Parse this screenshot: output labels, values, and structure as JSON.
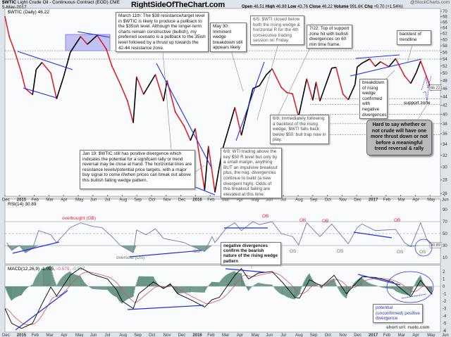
{
  "header": {
    "symbol": "$WTIC",
    "description": "Light Crude Oil - Continuous Contract (EOD)",
    "exchange": "CME",
    "date": "5-May-2017",
    "site": "RightSideOfTheChart.com",
    "credit": "@StockCharts.com",
    "open_label": "Open",
    "open": "46.51",
    "high_label": "High",
    "high": "46.88",
    "low_label": "Low",
    "low": "43.76",
    "close_label": "Close",
    "close": "46.22",
    "volume_label": "Volume",
    "volume": "991.6K",
    "chg_label": "Chg",
    "chg": "+0.70 (+1.54%)"
  },
  "colors": {
    "up": "#000000",
    "down": "#e0202a",
    "trendline": "#1f2ee8",
    "rsi": "#6f78a8",
    "macd": "#000000",
    "signal": "#d0506a",
    "histogram": "#5f8f7f",
    "zone": "#a8a8f0"
  },
  "chart_data": [
    {
      "type": "line",
      "panel": "price",
      "legend": "$WTIC (Daily) 46.22",
      "scale": "log",
      "ylim": [
        25,
        71
      ],
      "yticks": [
        70,
        68,
        66,
        64,
        62,
        60,
        58,
        56,
        54,
        52,
        50,
        48,
        46,
        44,
        42,
        40,
        38,
        36,
        34,
        32,
        30,
        28,
        26
      ],
      "last_value_label": "46.22",
      "grid": "dashed horizontal support/resistance lines",
      "x_ticks": [
        "Dec",
        "2015",
        "Feb",
        "Mar",
        "Apr",
        "May",
        "Jun",
        "Jul",
        "Aug",
        "Sep",
        "Oct",
        "Nov",
        "Dec",
        "2016",
        "Feb",
        "Mar",
        "Apr",
        "May",
        "Jun",
        "Jul",
        "Aug",
        "Sep",
        "Oct",
        "Nov",
        "Dec",
        "2017",
        "Feb",
        "Mar",
        "Apr",
        "May",
        "Jun"
      ],
      "levels": [
        56.5,
        54,
        43.5,
        42.2,
        40,
        38,
        35.8
      ],
      "points": [
        [
          "2014-12-01",
          68
        ],
        [
          "2014-12-10",
          61
        ],
        [
          "2014-12-22",
          56
        ],
        [
          "2015-01-05",
          50
        ],
        [
          "2015-01-13",
          46
        ],
        [
          "2015-01-28",
          44.5
        ],
        [
          "2015-02-05",
          51
        ],
        [
          "2015-02-17",
          53
        ],
        [
          "2015-03-05",
          50
        ],
        [
          "2015-03-17",
          43.5
        ],
        [
          "2015-04-01",
          49
        ],
        [
          "2015-04-15",
          56
        ],
        [
          "2015-05-06",
          61
        ],
        [
          "2015-05-20",
          58.5
        ],
        [
          "2015-06-10",
          61.4
        ],
        [
          "2015-06-29",
          57
        ],
        [
          "2015-07-10",
          52
        ],
        [
          "2015-07-28",
          47
        ],
        [
          "2015-08-12",
          43
        ],
        [
          "2015-08-24",
          38.2
        ],
        [
          "2015-08-31",
          49
        ],
        [
          "2015-09-15",
          44.6
        ],
        [
          "2015-10-09",
          49.6
        ],
        [
          "2015-10-26",
          43
        ],
        [
          "2015-11-03",
          48
        ],
        [
          "2015-11-20",
          40.5
        ],
        [
          "2015-12-08",
          37.5
        ],
        [
          "2015-12-21",
          34.7
        ],
        [
          "2015-12-31",
          37
        ],
        [
          "2016-01-12",
          30.4
        ],
        [
          "2016-01-20",
          26.5
        ],
        [
          "2016-01-28",
          33.6
        ],
        [
          "2016-02-11",
          26.2
        ],
        [
          "2016-02-26",
          32.8
        ],
        [
          "2016-03-22",
          41.5
        ],
        [
          "2016-04-05",
          35.7
        ],
        [
          "2016-04-29",
          46
        ],
        [
          "2016-05-12",
          46.7
        ],
        [
          "2016-05-26",
          49.5
        ],
        [
          "2016-06-08",
          51.2
        ],
        [
          "2016-06-27",
          46.3
        ],
        [
          "2016-07-08",
          45
        ],
        [
          "2016-07-20",
          44.7
        ],
        [
          "2016-08-02",
          39.5
        ],
        [
          "2016-08-19",
          48.5
        ],
        [
          "2016-09-01",
          43.2
        ],
        [
          "2016-09-08",
          47.6
        ],
        [
          "2016-09-16",
          43
        ],
        [
          "2016-10-10",
          51.4
        ],
        [
          "2016-10-19",
          51.6
        ],
        [
          "2016-11-03",
          44.6
        ],
        [
          "2016-11-14",
          43.3
        ],
        [
          "2016-11-28",
          47
        ],
        [
          "2016-12-02",
          51.7
        ],
        [
          "2016-12-12",
          52.8
        ],
        [
          "2016-12-28",
          54
        ],
        [
          "2017-01-09",
          51.9
        ],
        [
          "2017-01-20",
          53.2
        ],
        [
          "2017-02-07",
          51.8
        ],
        [
          "2017-02-21",
          54.1
        ],
        [
          "2017-03-09",
          49.3
        ],
        [
          "2017-03-22",
          47.3
        ],
        [
          "2017-04-03",
          50.2
        ],
        [
          "2017-04-12",
          53.4
        ],
        [
          "2017-04-24",
          49.2
        ],
        [
          "2017-05-04",
          45.5
        ],
        [
          "2017-05-05",
          46.22
        ]
      ]
    },
    {
      "type": "line",
      "panel": "rsi",
      "legend": "RSI(14) 30.89",
      "ylim": [
        0,
        100
      ],
      "yticks": [
        90,
        70,
        50,
        30,
        10
      ],
      "last_value_label": "30.89",
      "levels": [
        70,
        50,
        30
      ],
      "points": [
        [
          "2014-12-05",
          35
        ],
        [
          "2014-12-15",
          22
        ],
        [
          "2014-12-31",
          30
        ],
        [
          "2015-01-13",
          18
        ],
        [
          "2015-01-28",
          25
        ],
        [
          "2015-02-10",
          55
        ],
        [
          "2015-03-05",
          48
        ],
        [
          "2015-03-17",
          35
        ],
        [
          "2015-04-15",
          60
        ],
        [
          "2015-05-06",
          68
        ],
        [
          "2015-06-01",
          62
        ],
        [
          "2015-06-20",
          60
        ],
        [
          "2015-07-10",
          45
        ],
        [
          "2015-07-28",
          30
        ],
        [
          "2015-08-24",
          18
        ],
        [
          "2015-08-31",
          56
        ],
        [
          "2015-09-20",
          48
        ],
        [
          "2015-10-09",
          58
        ],
        [
          "2015-10-26",
          42
        ],
        [
          "2015-11-20",
          38
        ],
        [
          "2015-12-08",
          35
        ],
        [
          "2015-12-21",
          30
        ],
        [
          "2016-01-20",
          20
        ],
        [
          "2016-02-05",
          45
        ],
        [
          "2016-02-11",
          35
        ],
        [
          "2016-03-05",
          60
        ],
        [
          "2016-03-22",
          68
        ],
        [
          "2016-04-05",
          55
        ],
        [
          "2016-04-29",
          70
        ],
        [
          "2016-05-12",
          65
        ],
        [
          "2016-06-08",
          70
        ],
        [
          "2016-06-27",
          50
        ],
        [
          "2016-07-20",
          45
        ],
        [
          "2016-08-02",
          31
        ],
        [
          "2016-08-19",
          68
        ],
        [
          "2016-09-16",
          45
        ],
        [
          "2016-10-10",
          66
        ],
        [
          "2016-11-14",
          33
        ],
        [
          "2016-12-02",
          60
        ],
        [
          "2016-12-12",
          66
        ],
        [
          "2017-01-09",
          55
        ],
        [
          "2017-02-21",
          57
        ],
        [
          "2017-03-09",
          35
        ],
        [
          "2017-03-22",
          28
        ],
        [
          "2017-04-12",
          68
        ],
        [
          "2017-04-24",
          42
        ],
        [
          "2017-05-04",
          29
        ],
        [
          "2017-05-05",
          30.89
        ]
      ]
    },
    {
      "type": "line",
      "panel": "macd",
      "legend_prefix": "MACD(12,26,9)",
      "legend_macd": "-1.095,",
      "legend_signal": "-0.579,",
      "legend_hist": "-0.517",
      "ylim": [
        -6.3,
        2.6
      ],
      "yticks": [
        2,
        1,
        0,
        -1,
        -2,
        -3,
        -4,
        -5,
        -6
      ],
      "points": [
        [
          "2014-12-01",
          -3
        ],
        [
          "2014-12-15",
          -5
        ],
        [
          "2015-01-05",
          -5.7
        ],
        [
          "2015-01-28",
          -5
        ],
        [
          "2015-02-20",
          -2
        ],
        [
          "2015-03-05",
          -0.1
        ],
        [
          "2015-03-17",
          -1.3
        ],
        [
          "2015-04-15",
          1.5
        ],
        [
          "2015-05-06",
          2.5
        ],
        [
          "2015-06-01",
          1.6
        ],
        [
          "2015-07-01",
          1
        ],
        [
          "2015-07-20",
          -0.5
        ],
        [
          "2015-08-01",
          -2
        ],
        [
          "2015-08-24",
          -3
        ],
        [
          "2015-09-05",
          -1
        ],
        [
          "2015-10-05",
          0.6
        ],
        [
          "2015-10-26",
          -0.3
        ],
        [
          "2015-11-10",
          0.3
        ],
        [
          "2015-11-25",
          -1
        ],
        [
          "2015-12-21",
          -1.8
        ],
        [
          "2016-01-20",
          -2.8
        ],
        [
          "2016-02-05",
          -1.8
        ],
        [
          "2016-02-20",
          -1.5
        ],
        [
          "2016-03-22",
          1.5
        ],
        [
          "2016-04-05",
          2.4
        ],
        [
          "2016-04-20",
          1.0
        ],
        [
          "2016-05-10",
          1.8
        ],
        [
          "2016-06-08",
          2
        ],
        [
          "2016-06-30",
          0.5
        ],
        [
          "2016-07-25",
          -1.5
        ],
        [
          "2016-08-04",
          -1.6
        ],
        [
          "2016-08-25",
          0.9
        ],
        [
          "2016-09-20",
          0
        ],
        [
          "2016-10-15",
          1.5
        ],
        [
          "2016-11-10",
          -1
        ],
        [
          "2016-12-12",
          1.3
        ],
        [
          "2017-01-10",
          1.2
        ],
        [
          "2017-02-15",
          0.6
        ],
        [
          "2017-03-22",
          -1.4
        ],
        [
          "2017-04-12",
          0.8
        ],
        [
          "2017-05-05",
          -1.095
        ]
      ]
    }
  ],
  "annotations": {
    "march11": "March 11th: The $38 resistance/target level in $WTIC is likely to produce a pullback to the $35ish level. Although the longer-term charts remain constructive (bullish), my preferred scenario is a pullback to the 35ish level followed by a thrust up towards the 42-44 resistance zone.",
    "may30": "May 30: Imminent wedge breakdown still appears likely",
    "jun5": "6/5: $WTI closed below both the rising wedge & horizontal R for the 4th consecutive trading session on Friday.",
    "jul22": "7/22: Top of support zone hit with bullish divergences on 60 min time frame.",
    "backtest": "backtest of trendline",
    "breakdown": "breakdown of rising wedge confirmed with negative divergences",
    "support": "support zone",
    "hard": "Hard to say whether or not crude will have one more thrust down or not before a meaningful trend reversal & rally",
    "jun8b": "6/8: Immediately following a backtest of the rising wedge, $WTI falls back below $50: bull trap now in play.",
    "jun8a": "6/8: WTI trading above the key $50 R level but only by a small margin, anything BUT an impulsive breakout plus, the neg. divergences continue to build (a new divergent high). Odds of this breakout failing are elevated at this time.",
    "jan19": "Jan 19: $WTIC still has positive divergence which indicates the potential for a signifcant rally or trend reversal may be close at hand. The horizontal lines are resistance levels/potential price targets, with a major buy signal to come if/when prices can break out above this bullish falling wedge pattern.",
    "overbought": "overbought (OB)",
    "oversold": "oversold (OS)",
    "ob": "OB",
    "os": "OS",
    "negdiv": "negative divergences confirm the bearish nature of the rising wedge pattern",
    "posdiv": "potential (unconfirmed) positive divergence",
    "shorturl": "short url: rsotc.com"
  }
}
